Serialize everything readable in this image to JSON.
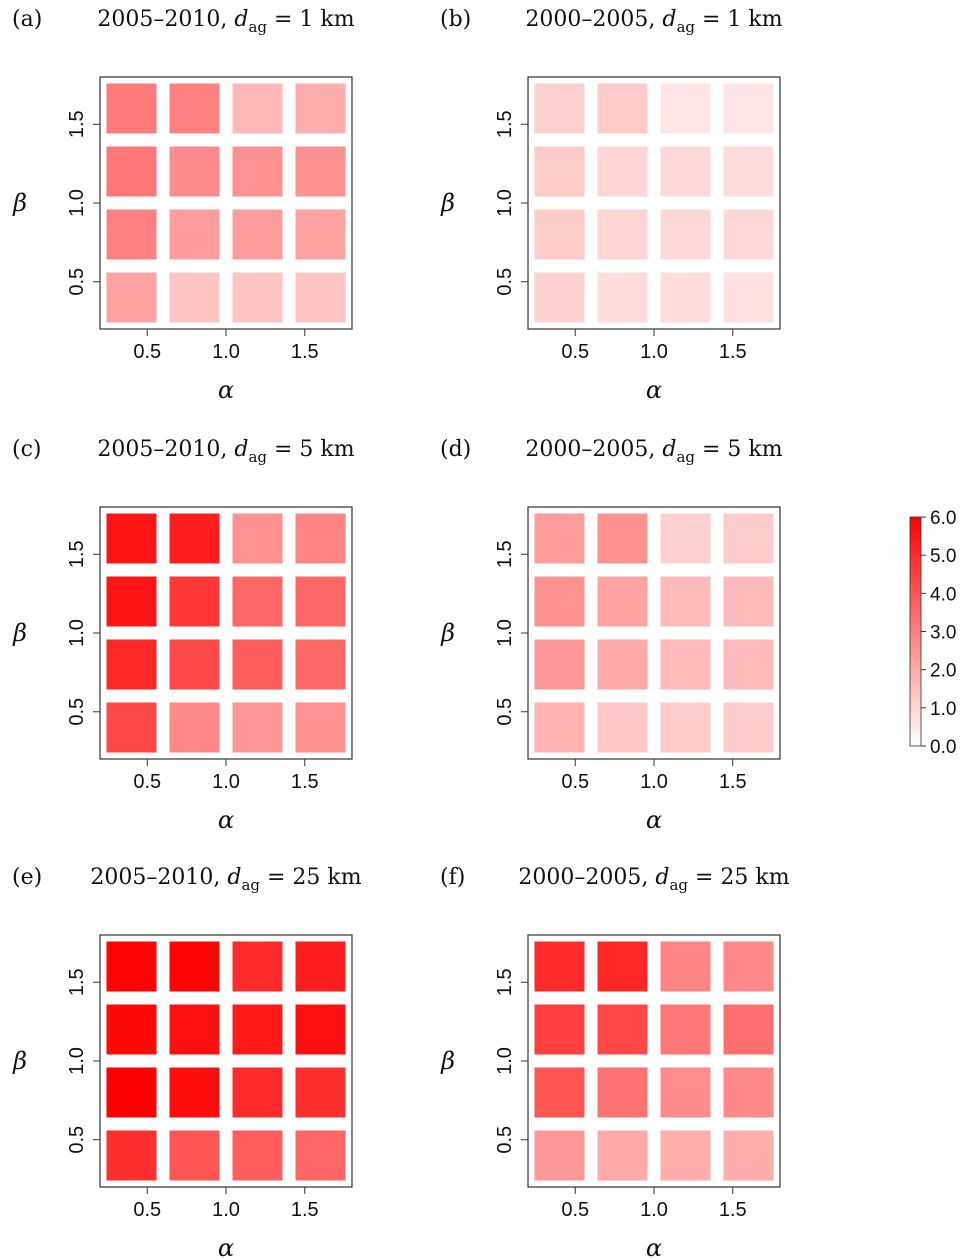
{
  "colors": {
    "high": "#ff0000",
    "low": "#ffffff",
    "frame": "#333333"
  },
  "chart_data": {
    "type": "heatmap",
    "x_ticks": [
      "0.5",
      "1.0",
      "1.5"
    ],
    "y_ticks": [
      "0.5",
      "1.0",
      "1.5"
    ],
    "x_values": [
      0.4,
      0.8,
      1.2,
      1.6
    ],
    "y_values": [
      0.4,
      0.8,
      1.2,
      1.6
    ],
    "xlim": [
      0.2,
      1.8
    ],
    "ylim": [
      0.2,
      1.8
    ],
    "xlabel": "α",
    "ylabel": "β",
    "colorbar": {
      "min": 0,
      "max": 6,
      "ticks": [
        "6.0",
        "5.0",
        "4.0",
        "3.0",
        "2.0",
        "1.0",
        "0.0"
      ]
    },
    "panels": [
      {
        "label": "(a)",
        "period": "2005–2010,",
        "d_symbol": "d",
        "d_sub": "ag",
        "d_value": "= 1 km",
        "values": [
          [
            2.2,
            1.4,
            1.4,
            1.4
          ],
          [
            3.0,
            2.3,
            2.3,
            2.2
          ],
          [
            3.2,
            2.7,
            2.6,
            2.6
          ],
          [
            3.1,
            3.0,
            1.7,
            1.9
          ]
        ]
      },
      {
        "label": "(b)",
        "period": "2000–2005,",
        "d_symbol": "d",
        "d_sub": "ag",
        "d_value": "= 1 km",
        "values": [
          [
            1.1,
            0.8,
            0.8,
            0.7
          ],
          [
            1.2,
            1.0,
            0.9,
            0.9
          ],
          [
            1.2,
            1.0,
            0.9,
            0.8
          ],
          [
            1.1,
            1.2,
            0.6,
            0.6
          ]
        ]
      },
      {
        "label": "(c)",
        "period": "2005–2010,",
        "d_symbol": "d",
        "d_sub": "ag",
        "d_value": "= 5 km",
        "values": [
          [
            4.3,
            2.8,
            2.5,
            2.6
          ],
          [
            5.1,
            4.3,
            3.8,
            3.6
          ],
          [
            5.5,
            4.7,
            3.6,
            3.6
          ],
          [
            5.5,
            5.3,
            2.6,
            2.9
          ]
        ]
      },
      {
        "label": "(d)",
        "period": "2000–2005,",
        "d_symbol": "d",
        "d_sub": "ag",
        "d_value": "= 5 km",
        "values": [
          [
            1.8,
            1.3,
            1.2,
            1.2
          ],
          [
            2.4,
            2.0,
            1.6,
            1.6
          ],
          [
            2.6,
            2.2,
            1.6,
            1.6
          ],
          [
            2.3,
            2.6,
            1.1,
            1.2
          ]
        ]
      },
      {
        "label": "(e)",
        "period": "2005–2010,",
        "d_symbol": "d",
        "d_sub": "ag",
        "d_value": "= 25 km",
        "values": [
          [
            4.9,
            4.0,
            3.8,
            3.6
          ],
          [
            6.0,
            5.7,
            5.0,
            4.9
          ],
          [
            5.8,
            5.6,
            5.4,
            5.6
          ],
          [
            5.9,
            5.9,
            5.0,
            5.3
          ]
        ]
      },
      {
        "label": "(f)",
        "period": "2000–2005,",
        "d_symbol": "d",
        "d_sub": "ag",
        "d_value": "= 25 km",
        "values": [
          [
            2.4,
            2.0,
            1.9,
            1.9
          ],
          [
            4.0,
            3.3,
            2.7,
            2.8
          ],
          [
            4.5,
            4.3,
            3.2,
            3.4
          ],
          [
            5.0,
            5.1,
            2.9,
            2.8
          ]
        ]
      }
    ]
  }
}
